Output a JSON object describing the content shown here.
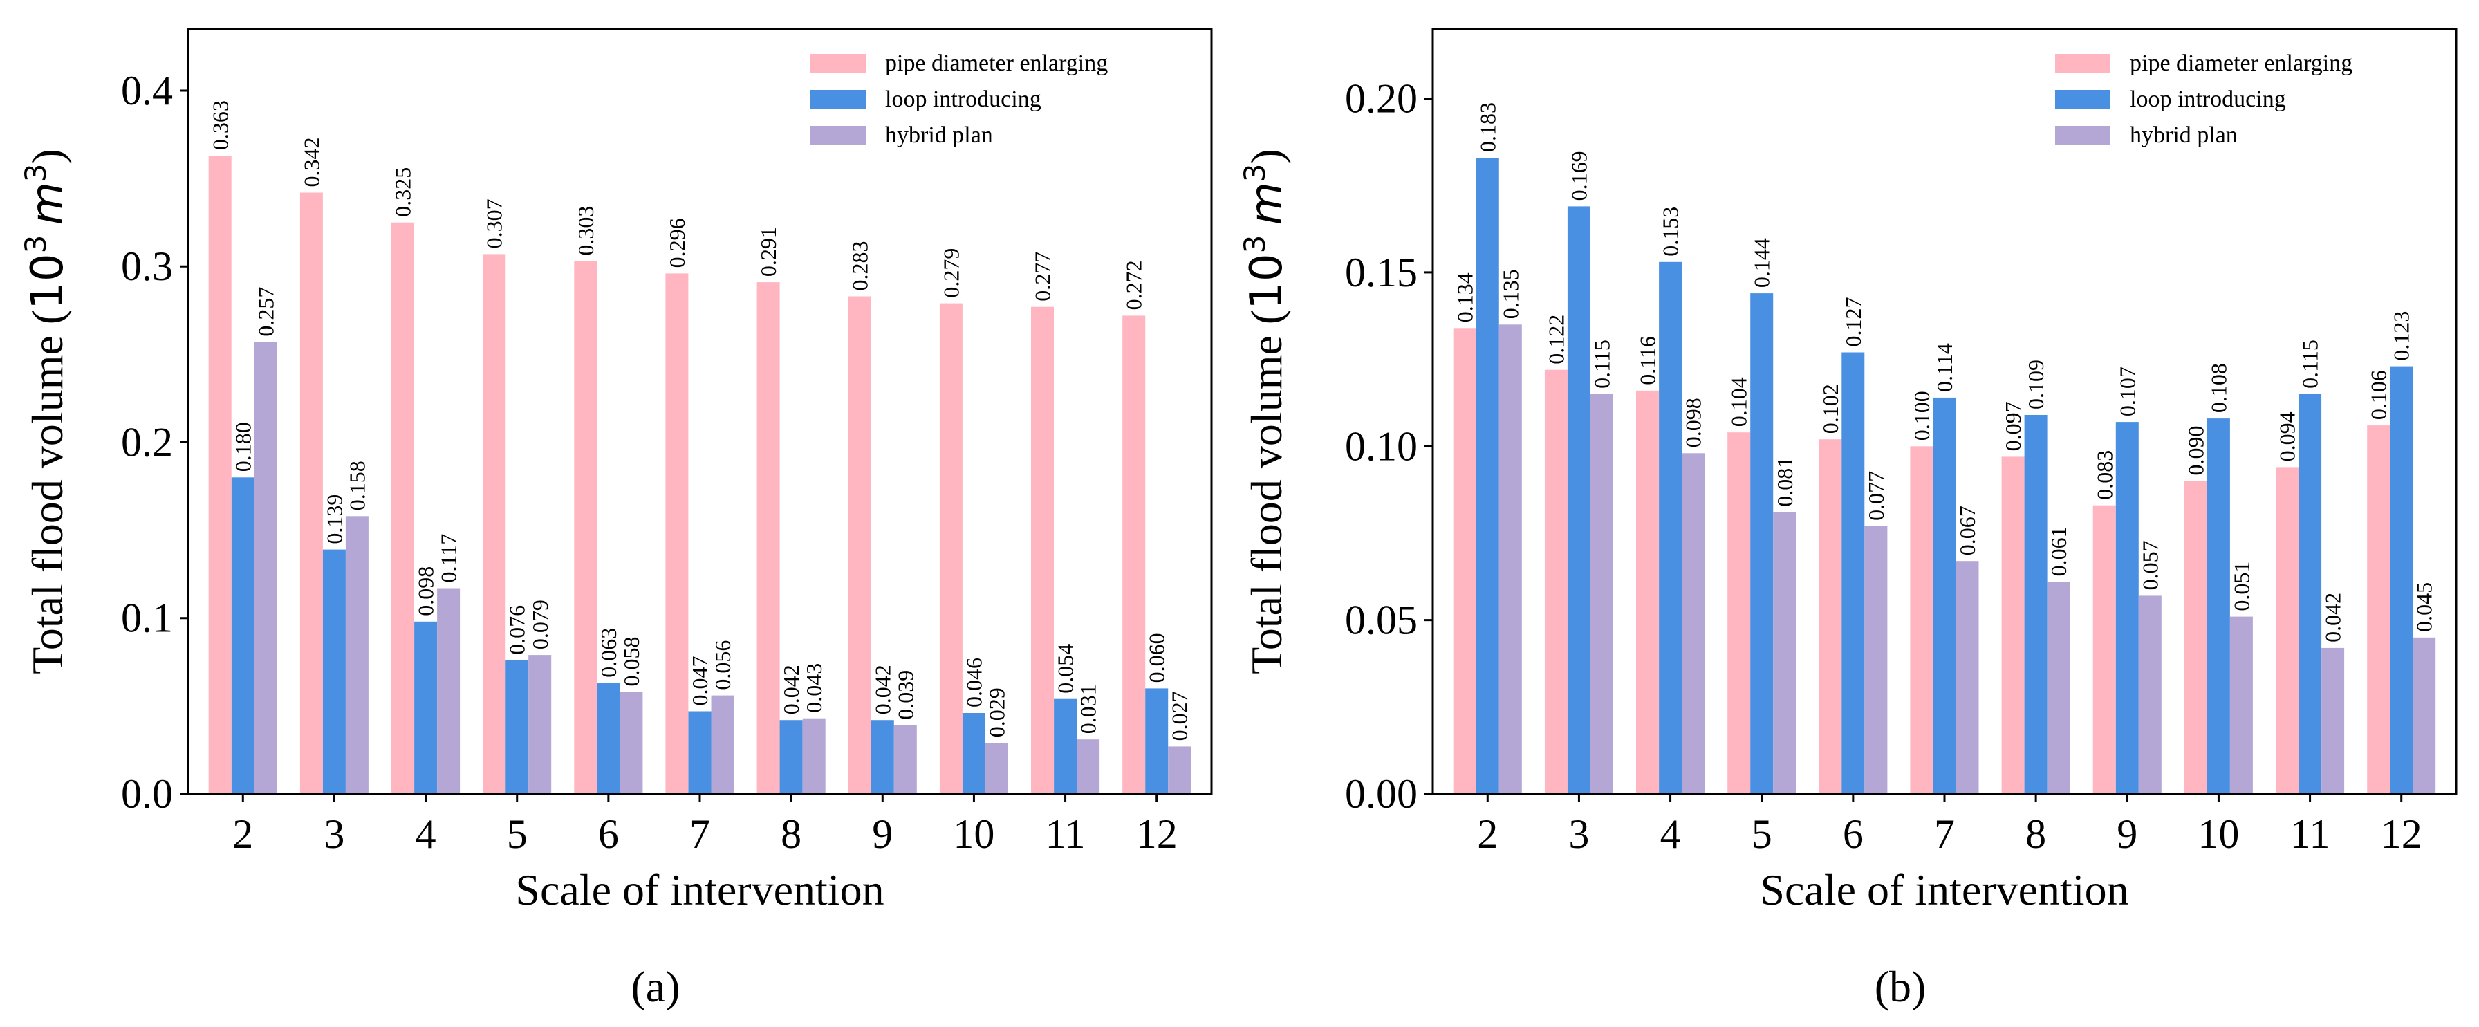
{
  "chart_data": [
    {
      "type": "bar",
      "panel_label": "(a)",
      "xlabel": "Scale of intervention",
      "ylabel_text": "Total flood volume (",
      "ylabel_unit_base": "10",
      "ylabel_unit_exp": "3",
      "ylabel_unit_m": "m",
      "ylabel_unit_m_exp": "3",
      "ylabel_close": ")",
      "ylim": [
        0,
        0.435
      ],
      "yticks": [
        "0.0",
        "0.1",
        "0.2",
        "0.3",
        "0.4"
      ],
      "categories": [
        "2",
        "3",
        "4",
        "5",
        "6",
        "7",
        "8",
        "9",
        "10",
        "11",
        "12"
      ],
      "legend_position": "top-right",
      "series": [
        {
          "name": "pipe diameter enlarging",
          "color": "#FFB6C1",
          "values": [
            0.363,
            0.342,
            0.325,
            0.307,
            0.303,
            0.296,
            0.291,
            0.283,
            0.279,
            0.277,
            0.272
          ],
          "labels": [
            "0.363",
            "0.342",
            "0.325",
            "0.307",
            "0.303",
            "0.296",
            "0.291",
            "0.283",
            "0.279",
            "0.277",
            "0.272"
          ]
        },
        {
          "name": "loop introducing",
          "color": "#4A90E2",
          "values": [
            0.18,
            0.139,
            0.098,
            0.076,
            0.063,
            0.047,
            0.042,
            0.042,
            0.046,
            0.054,
            0.06
          ],
          "labels": [
            "0.180",
            "0.139",
            "0.098",
            "0.076",
            "0.063",
            "0.047",
            "0.042",
            "0.042",
            "0.046",
            "0.054",
            "0.060"
          ]
        },
        {
          "name": "hybrid plan",
          "color": "#B4A7D6",
          "values": [
            0.257,
            0.158,
            0.117,
            0.079,
            0.058,
            0.056,
            0.043,
            0.039,
            0.029,
            0.031,
            0.027
          ],
          "labels": [
            "0.257",
            "0.158",
            "0.117",
            "0.079",
            "0.058",
            "0.056",
            "0.043",
            "0.039",
            "0.029",
            "0.031",
            "0.027"
          ]
        }
      ]
    },
    {
      "type": "bar",
      "panel_label": "(b)",
      "xlabel": "Scale of intervention",
      "ylabel_text": "Total flood volume (",
      "ylabel_unit_base": "10",
      "ylabel_unit_exp": "3",
      "ylabel_unit_m": "m",
      "ylabel_unit_m_exp": "3",
      "ylabel_close": ")",
      "ylim": [
        0,
        0.22
      ],
      "yticks": [
        "0.00",
        "0.05",
        "0.10",
        "0.15",
        "0.20"
      ],
      "categories": [
        "2",
        "3",
        "4",
        "5",
        "6",
        "7",
        "8",
        "9",
        "10",
        "11",
        "12"
      ],
      "legend_position": "top-right",
      "series": [
        {
          "name": "pipe diameter enlarging",
          "color": "#FFB6C1",
          "values": [
            0.134,
            0.122,
            0.116,
            0.104,
            0.102,
            0.1,
            0.097,
            0.083,
            0.09,
            0.094,
            0.106
          ],
          "labels": [
            "0.134",
            "0.122",
            "0.116",
            "0.104",
            "0.102",
            "0.100",
            "0.097",
            "0.083",
            "0.090",
            "0.094",
            "0.106"
          ]
        },
        {
          "name": "loop introducing",
          "color": "#4A90E2",
          "values": [
            0.183,
            0.169,
            0.153,
            0.144,
            0.127,
            0.114,
            0.109,
            0.107,
            0.108,
            0.115,
            0.123
          ],
          "labels": [
            "0.183",
            "0.169",
            "0.153",
            "0.144",
            "0.127",
            "0.114",
            "0.109",
            "0.107",
            "0.108",
            "0.115",
            "0.123"
          ]
        },
        {
          "name": "hybrid plan",
          "color": "#B4A7D6",
          "values": [
            0.135,
            0.115,
            0.098,
            0.081,
            0.077,
            0.067,
            0.061,
            0.057,
            0.051,
            0.042,
            0.045
          ],
          "labels": [
            "0.135",
            "0.115",
            "0.098",
            "0.081",
            "0.077",
            "0.067",
            "0.061",
            "0.057",
            "0.051",
            "0.042",
            "0.045"
          ]
        }
      ]
    }
  ]
}
